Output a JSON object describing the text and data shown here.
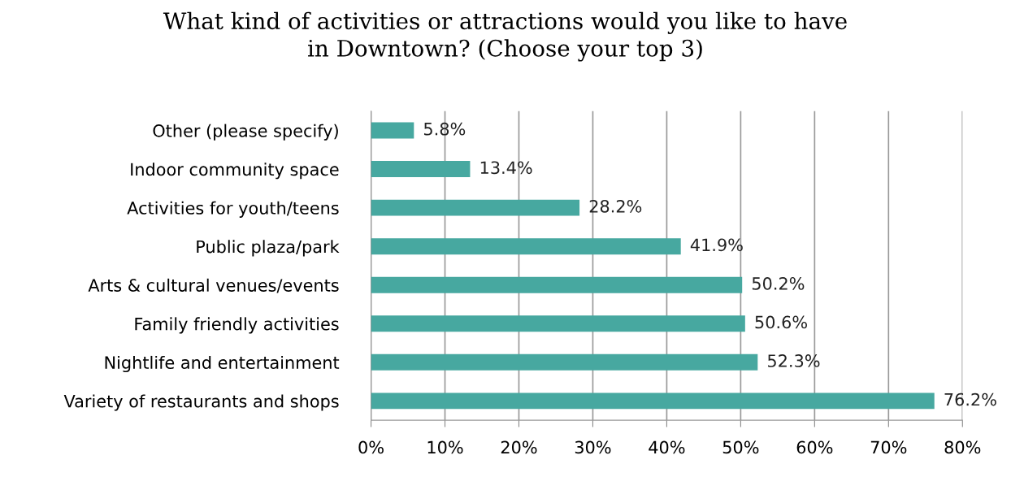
{
  "chart_data": {
    "type": "bar",
    "orientation": "horizontal",
    "title": "What kind of activities or attractions would you like to have\nin Downtown? (Choose your top 3)",
    "categories": [
      "Other (please specify)",
      "Indoor community space",
      "Activities for youth/teens",
      "Public plaza/park",
      "Arts & cultural venues/events",
      "Family friendly activities",
      "Nightlife and entertainment",
      "Variety of restaurants and shops"
    ],
    "values": [
      5.8,
      13.4,
      28.2,
      41.9,
      50.2,
      50.6,
      52.3,
      76.2
    ],
    "value_labels": [
      "5.8%",
      "13.4%",
      "28.2%",
      "41.9%",
      "50.2%",
      "50.6%",
      "52.3%",
      "76.2%"
    ],
    "color": "#47a8a0",
    "xlim": [
      0,
      80
    ],
    "xticks": [
      {
        "value": 0,
        "label": "0%"
      },
      {
        "value": 10,
        "label": "10%"
      },
      {
        "value": 20,
        "label": "20%"
      },
      {
        "value": 30,
        "label": "30%"
      },
      {
        "value": 40,
        "label": "40%"
      },
      {
        "value": 50,
        "label": "50%"
      },
      {
        "value": 60,
        "label": "60%"
      },
      {
        "value": 70,
        "label": "70%"
      },
      {
        "value": 80,
        "label": "80%"
      }
    ],
    "grid": "x"
  }
}
